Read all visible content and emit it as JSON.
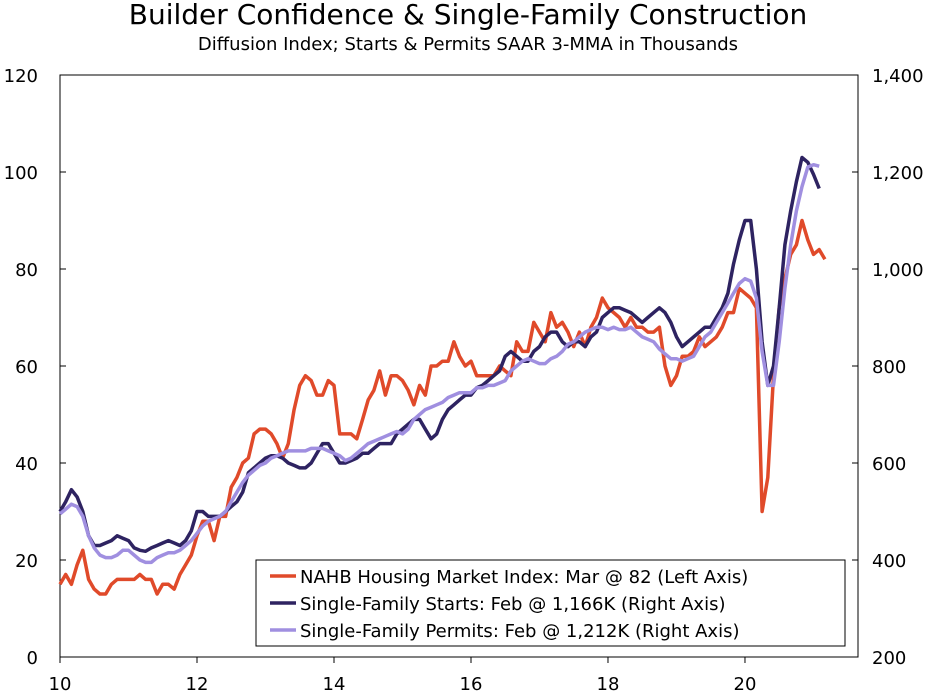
{
  "chart_data": {
    "type": "line",
    "title": "Builder Confidence & Single-Family Construction",
    "subtitle": "Diffusion Index; Starts & Permits SAAR 3-MMA in Thousands",
    "x": [
      10,
      10.083,
      10.167,
      10.25,
      10.333,
      10.417,
      10.5,
      10.583,
      10.667,
      10.75,
      10.833,
      10.917,
      11,
      11.083,
      11.167,
      11.25,
      11.333,
      11.417,
      11.5,
      11.583,
      11.667,
      11.75,
      11.833,
      11.917,
      12,
      12.083,
      12.167,
      12.25,
      12.333,
      12.417,
      12.5,
      12.583,
      12.667,
      12.75,
      12.833,
      12.917,
      13,
      13.083,
      13.167,
      13.25,
      13.333,
      13.417,
      13.5,
      13.583,
      13.667,
      13.75,
      13.833,
      13.917,
      14,
      14.083,
      14.167,
      14.25,
      14.333,
      14.417,
      14.5,
      14.583,
      14.667,
      14.75,
      14.833,
      14.917,
      15,
      15.083,
      15.167,
      15.25,
      15.333,
      15.417,
      15.5,
      15.583,
      15.667,
      15.75,
      15.833,
      15.917,
      16,
      16.083,
      16.167,
      16.25,
      16.333,
      16.417,
      16.5,
      16.583,
      16.667,
      16.75,
      16.833,
      16.917,
      17,
      17.083,
      17.167,
      17.25,
      17.333,
      17.417,
      17.5,
      17.583,
      17.667,
      17.75,
      17.833,
      17.917,
      18,
      18.083,
      18.167,
      18.25,
      18.333,
      18.417,
      18.5,
      18.583,
      18.667,
      18.75,
      18.833,
      18.917,
      19,
      19.083,
      19.167,
      19.25,
      19.333,
      19.417,
      19.5,
      19.583,
      19.667,
      19.75,
      19.833,
      19.917,
      20,
      20.083,
      20.167,
      20.25,
      20.333,
      20.417,
      20.5,
      20.583,
      20.667,
      20.75,
      20.833,
      20.917,
      21,
      21.083,
      21.167
    ],
    "series": [
      {
        "name": "NAHB Housing Market Index: Mar @ 82 (Left Axis)",
        "color": "#e04a2a",
        "axis": "y",
        "values": [
          15,
          17,
          15,
          19,
          22,
          16,
          14,
          13,
          13,
          15,
          16,
          16,
          16,
          16,
          17,
          16,
          16,
          13,
          15,
          15,
          14,
          17,
          19,
          21,
          25,
          28,
          28,
          24,
          29,
          29,
          35,
          37,
          40,
          41,
          46,
          47,
          47,
          46,
          44,
          41,
          44,
          51,
          56,
          58,
          57,
          54,
          54,
          57,
          56,
          46,
          46,
          46,
          45,
          49,
          53,
          55,
          59,
          54,
          58,
          58,
          57,
          55,
          52,
          56,
          54,
          60,
          60,
          61,
          61,
          65,
          62,
          60,
          61,
          58,
          58,
          58,
          58,
          60,
          59,
          58,
          65,
          63,
          63,
          69,
          67,
          65,
          71,
          68,
          69,
          67,
          64,
          67,
          64,
          68,
          70,
          74,
          72,
          71,
          70,
          68,
          70,
          68,
          68,
          67,
          67,
          68,
          60,
          56,
          58,
          62,
          62,
          63,
          66,
          64,
          65,
          66,
          68,
          71,
          71,
          76,
          75,
          74,
          72,
          30,
          37,
          58,
          72,
          78,
          83,
          85,
          90,
          86,
          83,
          84,
          82
        ]
      },
      {
        "name": "Single-Family Starts: Feb @ 1,166K (Right Axis)",
        "color": "#2e2361",
        "axis": "y2",
        "values": [
          500,
          520,
          545,
          530,
          500,
          450,
          430,
          430,
          435,
          440,
          450,
          445,
          440,
          425,
          420,
          418,
          425,
          430,
          435,
          440,
          435,
          430,
          440,
          460,
          500,
          500,
          490,
          490,
          490,
          500,
          510,
          520,
          540,
          580,
          590,
          600,
          610,
          615,
          615,
          610,
          600,
          595,
          590,
          590,
          600,
          620,
          640,
          640,
          620,
          600,
          600,
          605,
          610,
          620,
          620,
          630,
          640,
          640,
          640,
          660,
          670,
          680,
          690,
          690,
          670,
          650,
          660,
          690,
          710,
          720,
          730,
          740,
          740,
          755,
          760,
          770,
          780,
          790,
          820,
          830,
          820,
          810,
          810,
          830,
          840,
          860,
          870,
          870,
          850,
          840,
          850,
          850,
          840,
          860,
          870,
          900,
          910,
          920,
          920,
          915,
          910,
          900,
          890,
          900,
          910,
          920,
          910,
          890,
          860,
          840,
          850,
          860,
          870,
          880,
          880,
          900,
          920,
          950,
          1010,
          1060,
          1100,
          1100,
          1000,
          850,
          760,
          800,
          920,
          1050,
          1120,
          1180,
          1230,
          1220,
          1195,
          1166,
          null
        ]
      },
      {
        "name": "Single-Family Permits: Feb @ 1,212K (Right Axis)",
        "color": "#a08fe0",
        "axis": "y2",
        "values": [
          495,
          505,
          515,
          510,
          490,
          450,
          425,
          410,
          405,
          405,
          410,
          420,
          420,
          410,
          400,
          395,
          395,
          405,
          410,
          415,
          415,
          420,
          430,
          440,
          455,
          470,
          480,
          485,
          490,
          500,
          520,
          540,
          560,
          575,
          585,
          595,
          600,
          610,
          615,
          620,
          625,
          625,
          625,
          625,
          630,
          630,
          630,
          625,
          620,
          615,
          605,
          610,
          620,
          630,
          640,
          645,
          650,
          655,
          660,
          665,
          660,
          670,
          690,
          700,
          710,
          715,
          720,
          725,
          735,
          740,
          745,
          745,
          745,
          755,
          755,
          760,
          760,
          765,
          770,
          790,
          800,
          810,
          815,
          810,
          805,
          805,
          815,
          820,
          830,
          845,
          850,
          860,
          870,
          875,
          880,
          880,
          875,
          880,
          875,
          875,
          880,
          870,
          860,
          855,
          850,
          835,
          825,
          815,
          815,
          810,
          815,
          820,
          840,
          860,
          870,
          890,
          910,
          930,
          950,
          970,
          980,
          975,
          940,
          830,
          760,
          760,
          850,
          960,
          1050,
          1120,
          1170,
          1210,
          1215,
          1212,
          null
        ]
      }
    ],
    "xlim": [
      10,
      21.65
    ],
    "xticks": [
      10,
      12,
      14,
      16,
      18,
      20
    ],
    "ylim": [
      0,
      120
    ],
    "yticks": [
      0,
      20,
      40,
      60,
      80,
      100,
      120
    ],
    "y2lim": [
      200,
      1400
    ],
    "y2ticks": [
      200,
      400,
      600,
      800,
      {
        "value": 1000,
        "label": "1,000"
      },
      {
        "value": 1200,
        "label": "1,200"
      },
      {
        "value": 1400,
        "label": "1,400"
      }
    ],
    "legend": "bottom-right"
  }
}
